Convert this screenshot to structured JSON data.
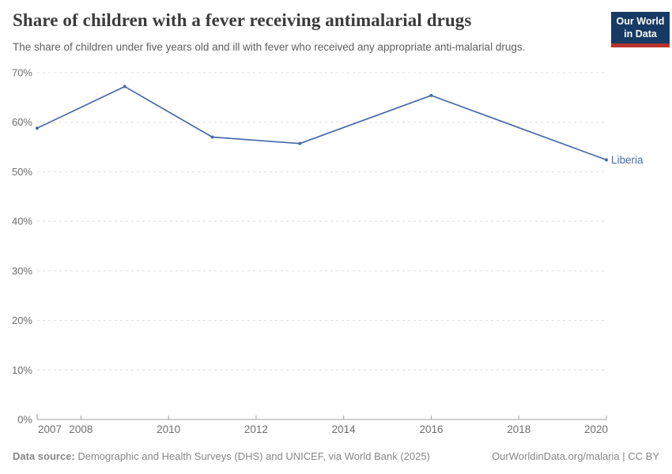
{
  "header": {
    "title": "Share of children with a fever receiving antimalarial drugs",
    "subtitle": "The share of children under five years old and ill with fever who received any appropriate anti-malarial drugs.",
    "logo": {
      "line1": "Our World",
      "line2": "in Data"
    }
  },
  "chart_data": {
    "type": "line",
    "title": "Share of children with a fever receiving antimalarial drugs",
    "series": [
      {
        "name": "Liberia",
        "x": [
          2007,
          2009,
          2011,
          2013,
          2016,
          2020
        ],
        "values": [
          58.8,
          67.2,
          57.0,
          55.7,
          65.4,
          52.4
        ]
      }
    ],
    "xlabel": "",
    "ylabel": "",
    "xlim": [
      2007,
      2020
    ],
    "ylim": [
      0,
      70
    ],
    "xticks": [
      2007,
      2008,
      2010,
      2012,
      2014,
      2016,
      2018,
      2020
    ],
    "yticks": [
      0,
      10,
      20,
      30,
      40,
      50,
      60,
      70
    ],
    "ytick_suffix": "%",
    "grid": "horizontal-dashed",
    "legend_position": "line-end-label"
  },
  "colors": {
    "line": "#4a6aa8",
    "gridline": "#dcdcdc",
    "axis": "#a2a2a2",
    "tick_text": "#6e6e6e",
    "logo_navy": "#163a63",
    "logo_red": "#b5332a"
  },
  "footer": {
    "source_label": "Data source:",
    "source_text": " Demographic and Health Surveys (DHS) and UNICEF, via World Bank (2025)",
    "link_text": "OurWorldinData.org/malaria | CC BY"
  }
}
